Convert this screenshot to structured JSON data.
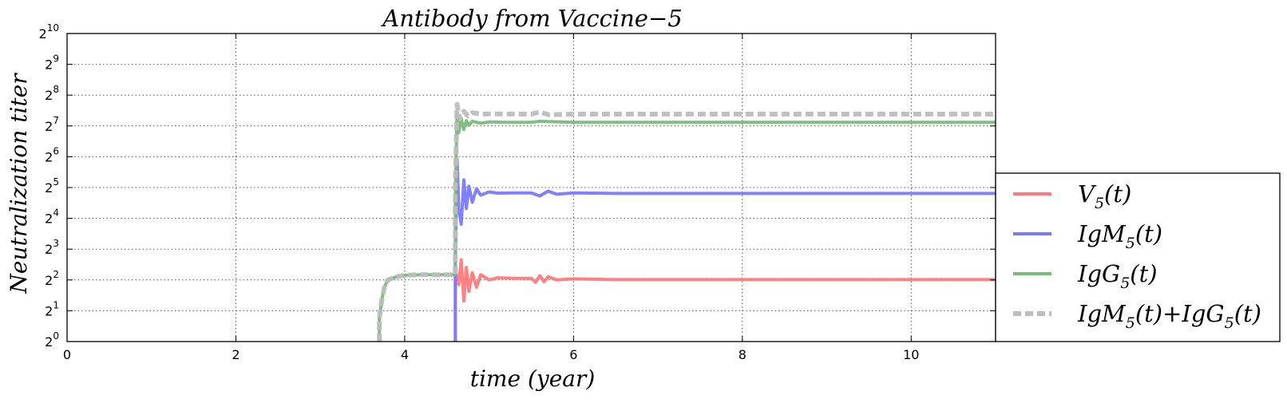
{
  "chart_data": {
    "type": "line",
    "title": "Antibody from Vaccine−5",
    "xlabel": "time (year)",
    "ylabel": "Neutralization titer",
    "xlim": [
      0,
      11
    ],
    "ylim_log2": [
      0,
      10
    ],
    "yscale": "log2",
    "grid": true,
    "legend_position": "right",
    "x_ticks": [
      "0",
      "2",
      "4",
      "6",
      "8",
      "10"
    ],
    "y_ticks": [
      {
        "base": "2",
        "exp": "0"
      },
      {
        "base": "2",
        "exp": "1"
      },
      {
        "base": "2",
        "exp": "2"
      },
      {
        "base": "2",
        "exp": "3"
      },
      {
        "base": "2",
        "exp": "4"
      },
      {
        "base": "2",
        "exp": "5"
      },
      {
        "base": "2",
        "exp": "6"
      },
      {
        "base": "2",
        "exp": "7"
      },
      {
        "base": "2",
        "exp": "8"
      },
      {
        "base": "2",
        "exp": "9"
      },
      {
        "base": "2",
        "exp": "10"
      }
    ],
    "series": [
      {
        "name": "V5(t)",
        "label_main": "V",
        "label_sub": "5",
        "label_rest": "(t)",
        "color": "#ff7a7a",
        "style": "solid",
        "x": [
          4.6,
          4.6,
          4.64,
          4.67,
          4.7,
          4.73,
          4.76,
          4.8,
          4.85,
          4.9,
          5.0,
          5.1,
          5.3,
          5.5,
          5.55,
          5.6,
          5.65,
          5.7,
          5.8,
          6.0,
          6.5,
          11.0
        ],
        "y": [
          1.0,
          5.0,
          3.6,
          6.3,
          2.5,
          5.3,
          3.1,
          4.7,
          3.4,
          4.5,
          4.0,
          4.2,
          4.15,
          4.15,
          3.8,
          4.4,
          3.85,
          4.3,
          4.0,
          4.1,
          4.03,
          4.03
        ]
      },
      {
        "name": "IgM5(t)",
        "label_main": "IgM",
        "label_sub": "5",
        "label_rest": "(t)",
        "color": "#7a7aff",
        "style": "solid",
        "x": [
          4.6,
          4.6,
          4.62,
          4.64,
          4.67,
          4.7,
          4.73,
          4.76,
          4.8,
          4.85,
          4.9,
          5.0,
          5.1,
          5.3,
          5.5,
          5.6,
          5.7,
          5.8,
          6.0,
          6.5,
          11.0
        ],
        "y": [
          1.0,
          5.5,
          60.0,
          20.0,
          14.0,
          38.0,
          20.0,
          33.0,
          23.0,
          31.0,
          27.0,
          29.0,
          28.2,
          28.3,
          28.3,
          26.5,
          29.5,
          27.5,
          28.3,
          28.0,
          28.0
        ]
      },
      {
        "name": "IgG5(t)",
        "label_main": "IgG",
        "label_sub": "5",
        "label_rest": "(t)",
        "color": "#7abb7a",
        "style": "solid",
        "x": [
          3.7,
          3.7,
          3.73,
          3.76,
          3.8,
          3.9,
          4.0,
          4.2,
          4.6,
          4.6,
          4.62,
          4.64,
          4.67,
          4.7,
          4.73,
          4.76,
          4.8,
          4.9,
          5.0,
          5.2,
          5.5,
          5.6,
          6.0,
          11.0
        ],
        "y": [
          1.0,
          1.7,
          2.6,
          3.4,
          4.0,
          4.3,
          4.45,
          4.5,
          4.5,
          25.0,
          175.0,
          110.0,
          150.0,
          118.0,
          144.0,
          130.0,
          142.0,
          136.0,
          140.0,
          139.0,
          139.0,
          142.0,
          139.0,
          139.0
        ]
      },
      {
        "name": "IgM5(t)+IgG5(t)",
        "label_main": "IgM",
        "label_sub": "5",
        "label_rest": "(t)+IgG",
        "label_sub2": "5",
        "label_rest2": "(t)",
        "color": "#bdbdbd",
        "style": "dashed",
        "x": [
          3.7,
          3.7,
          3.73,
          3.76,
          3.8,
          3.9,
          4.0,
          4.2,
          4.6,
          4.6,
          4.62,
          4.65,
          4.7,
          4.75,
          4.8,
          4.9,
          5.0,
          5.5,
          5.6,
          5.7,
          6.0,
          11.0
        ],
        "y": [
          1.0,
          1.7,
          2.6,
          3.4,
          4.0,
          4.3,
          4.45,
          4.5,
          4.5,
          35.0,
          208.0,
          150.0,
          178.0,
          160.0,
          172.0,
          167.0,
          168.0,
          167.0,
          175.0,
          165.0,
          167.0,
          167.0
        ]
      }
    ]
  }
}
